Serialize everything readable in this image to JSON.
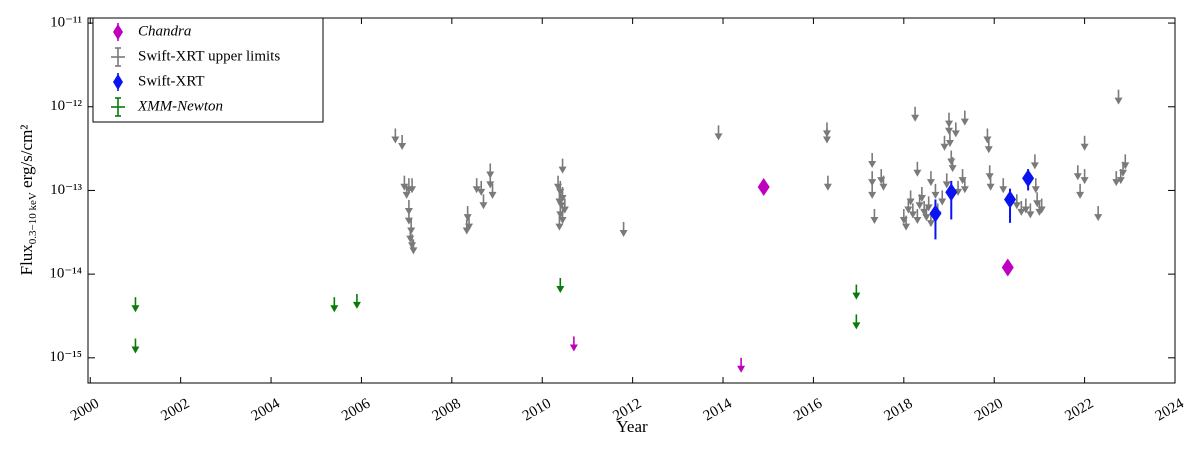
{
  "chart_data": {
    "type": "scatter",
    "x_label": "Year",
    "y_label": {
      "main": "Flux",
      "subscript": "0.3−10 keV",
      "unit": " erg/s/cm²"
    },
    "log_y": true,
    "legend": "upper left",
    "xlim": [
      1999.95,
      2024
    ],
    "xticks": [
      2000,
      2002,
      2004,
      2006,
      2008,
      2010,
      2012,
      2014,
      2016,
      2018,
      2020,
      2022,
      2024
    ],
    "ylim": [
      5e-16,
      1.15e-11
    ],
    "yticks": [
      {
        "value": 1e-15,
        "label": "10⁻¹⁵"
      },
      {
        "value": 1e-14,
        "label": "10⁻¹⁴"
      },
      {
        "value": 1e-13,
        "label": "10⁻¹³"
      },
      {
        "value": 1e-12,
        "label": "10⁻¹²"
      },
      {
        "value": 1e-11,
        "label": "10⁻¹¹"
      }
    ],
    "series": [
      {
        "name": "Chandra",
        "color": "#c000c0",
        "marker": "diamond",
        "italic": true,
        "x": [
          2014.9,
          2020.3,
          2010.7,
          2014.4
        ],
        "values": [
          1.1e-13,
          1.2e-14,
          1.8e-15,
          1e-15
        ],
        "upper_limit": [
          false,
          false,
          true,
          true
        ]
      },
      {
        "name": "Swift-XRT upper limits",
        "color": "#7a7a7a",
        "marker": "none",
        "italic": false,
        "x": [
          2006.75,
          2006.9,
          2006.95,
          2007.0,
          2007.05,
          2007.12,
          2007.05,
          2007.05,
          2007.1,
          2007.08,
          2007.12,
          2007.15,
          2008.35,
          2008.38,
          2008.33,
          2008.55,
          2008.65,
          2008.7,
          2008.85,
          2008.85,
          2008.9,
          2010.45,
          2010.35,
          2010.4,
          2010.45,
          2010.38,
          2010.42,
          2010.5,
          2010.4,
          2010.45,
          2010.38,
          2011.8,
          2013.9,
          2016.3,
          2016.3,
          2016.32,
          2017.3,
          2017.3,
          2017.3,
          2017.35,
          2017.5,
          2017.55,
          2018.0,
          2018.05,
          2018.1,
          2018.15,
          2018.2,
          2018.25,
          2018.3,
          2018.3,
          2018.35,
          2018.4,
          2018.45,
          2018.5,
          2018.55,
          2018.6,
          2018.6,
          2018.7,
          2018.75,
          2018.85,
          2018.9,
          2018.95,
          2019.0,
          2019.0,
          2019.02,
          2019.05,
          2019.08,
          2019.15,
          2019.2,
          2019.35,
          2019.3,
          2019.35,
          2019.85,
          2019.88,
          2019.9,
          2019.92,
          2020.2,
          2020.5,
          2020.6,
          2020.7,
          2020.8,
          2020.9,
          2020.92,
          2020.95,
          2021.0,
          2021.05,
          2021.85,
          2021.9,
          2022.0,
          2022.0,
          2022.3,
          2022.75,
          2022.7,
          2022.8,
          2022.85,
          2022.9
        ],
        "values": [
          5.5e-13,
          4.6e-13,
          1.5e-13,
          1.2e-13,
          1.4e-13,
          1.4e-13,
          7.7e-14,
          5.9e-14,
          4.5e-14,
          3.6e-14,
          3e-14,
          2.6e-14,
          6.5e-14,
          5e-14,
          4.5e-14,
          1.4e-13,
          1.3e-13,
          9e-14,
          2.1e-13,
          1.6e-13,
          1.2e-13,
          2.4e-13,
          1.5e-13,
          1.3e-13,
          1.1e-13,
          1e-13,
          9e-14,
          8e-14,
          7e-14,
          6e-14,
          5e-14,
          4.2e-14,
          6e-13,
          6.5e-13,
          5.5e-13,
          1.5e-13,
          2.8e-13,
          1.7e-13,
          1.2e-13,
          6e-14,
          1.8e-13,
          1.5e-13,
          6e-14,
          5e-14,
          8e-14,
          1e-13,
          7e-14,
          1e-12,
          2.2e-13,
          6e-14,
          9e-14,
          1.1e-13,
          7.5e-14,
          6.5e-14,
          8.5e-14,
          1.7e-13,
          5.5e-14,
          1.2e-13,
          7e-14,
          1e-13,
          4.5e-13,
          1.6e-13,
          8.5e-13,
          7e-13,
          5e-13,
          3e-13,
          2.5e-13,
          6.5e-13,
          1.3e-13,
          9e-13,
          1.8e-13,
          1.4e-13,
          5.5e-13,
          4.2e-13,
          2e-13,
          1.5e-13,
          1.4e-13,
          9e-14,
          7.5e-14,
          8e-14,
          7e-14,
          2.7e-13,
          1.4e-13,
          9.5e-14,
          7.5e-14,
          8e-14,
          2e-13,
          1.2e-13,
          4.5e-13,
          1.8e-13,
          6.5e-14,
          1.6e-12,
          1.7e-13,
          1.8e-13,
          2.2e-13,
          2.7e-13
        ],
        "upper_limit": true
      },
      {
        "name": "Swift-XRT",
        "color": "#0a14f0",
        "marker": "diamond",
        "italic": false,
        "x": [
          2018.7,
          2019.05,
          2020.35,
          2020.75
        ],
        "values": [
          5.3e-14,
          9.5e-14,
          7.8e-14,
          1.4e-13
        ],
        "lower": [
          2.6e-14,
          4.5e-14,
          4.1e-14,
          1e-13
        ],
        "upper": [
          7.8e-14,
          1.3e-13,
          1.05e-13,
          1.8e-13
        ],
        "upper_limit": false
      },
      {
        "name": "XMM-Newton",
        "color": "#0a7a0a",
        "marker": "none",
        "italic": true,
        "x": [
          2001.0,
          2001.0,
          2005.4,
          2005.9,
          2010.4,
          2016.95,
          2016.95
        ],
        "values": [
          5.3e-15,
          1.7e-15,
          5.3e-15,
          5.8e-15,
          9e-15,
          7.5e-15,
          3.3e-15
        ],
        "upper_limit": true
      }
    ]
  }
}
